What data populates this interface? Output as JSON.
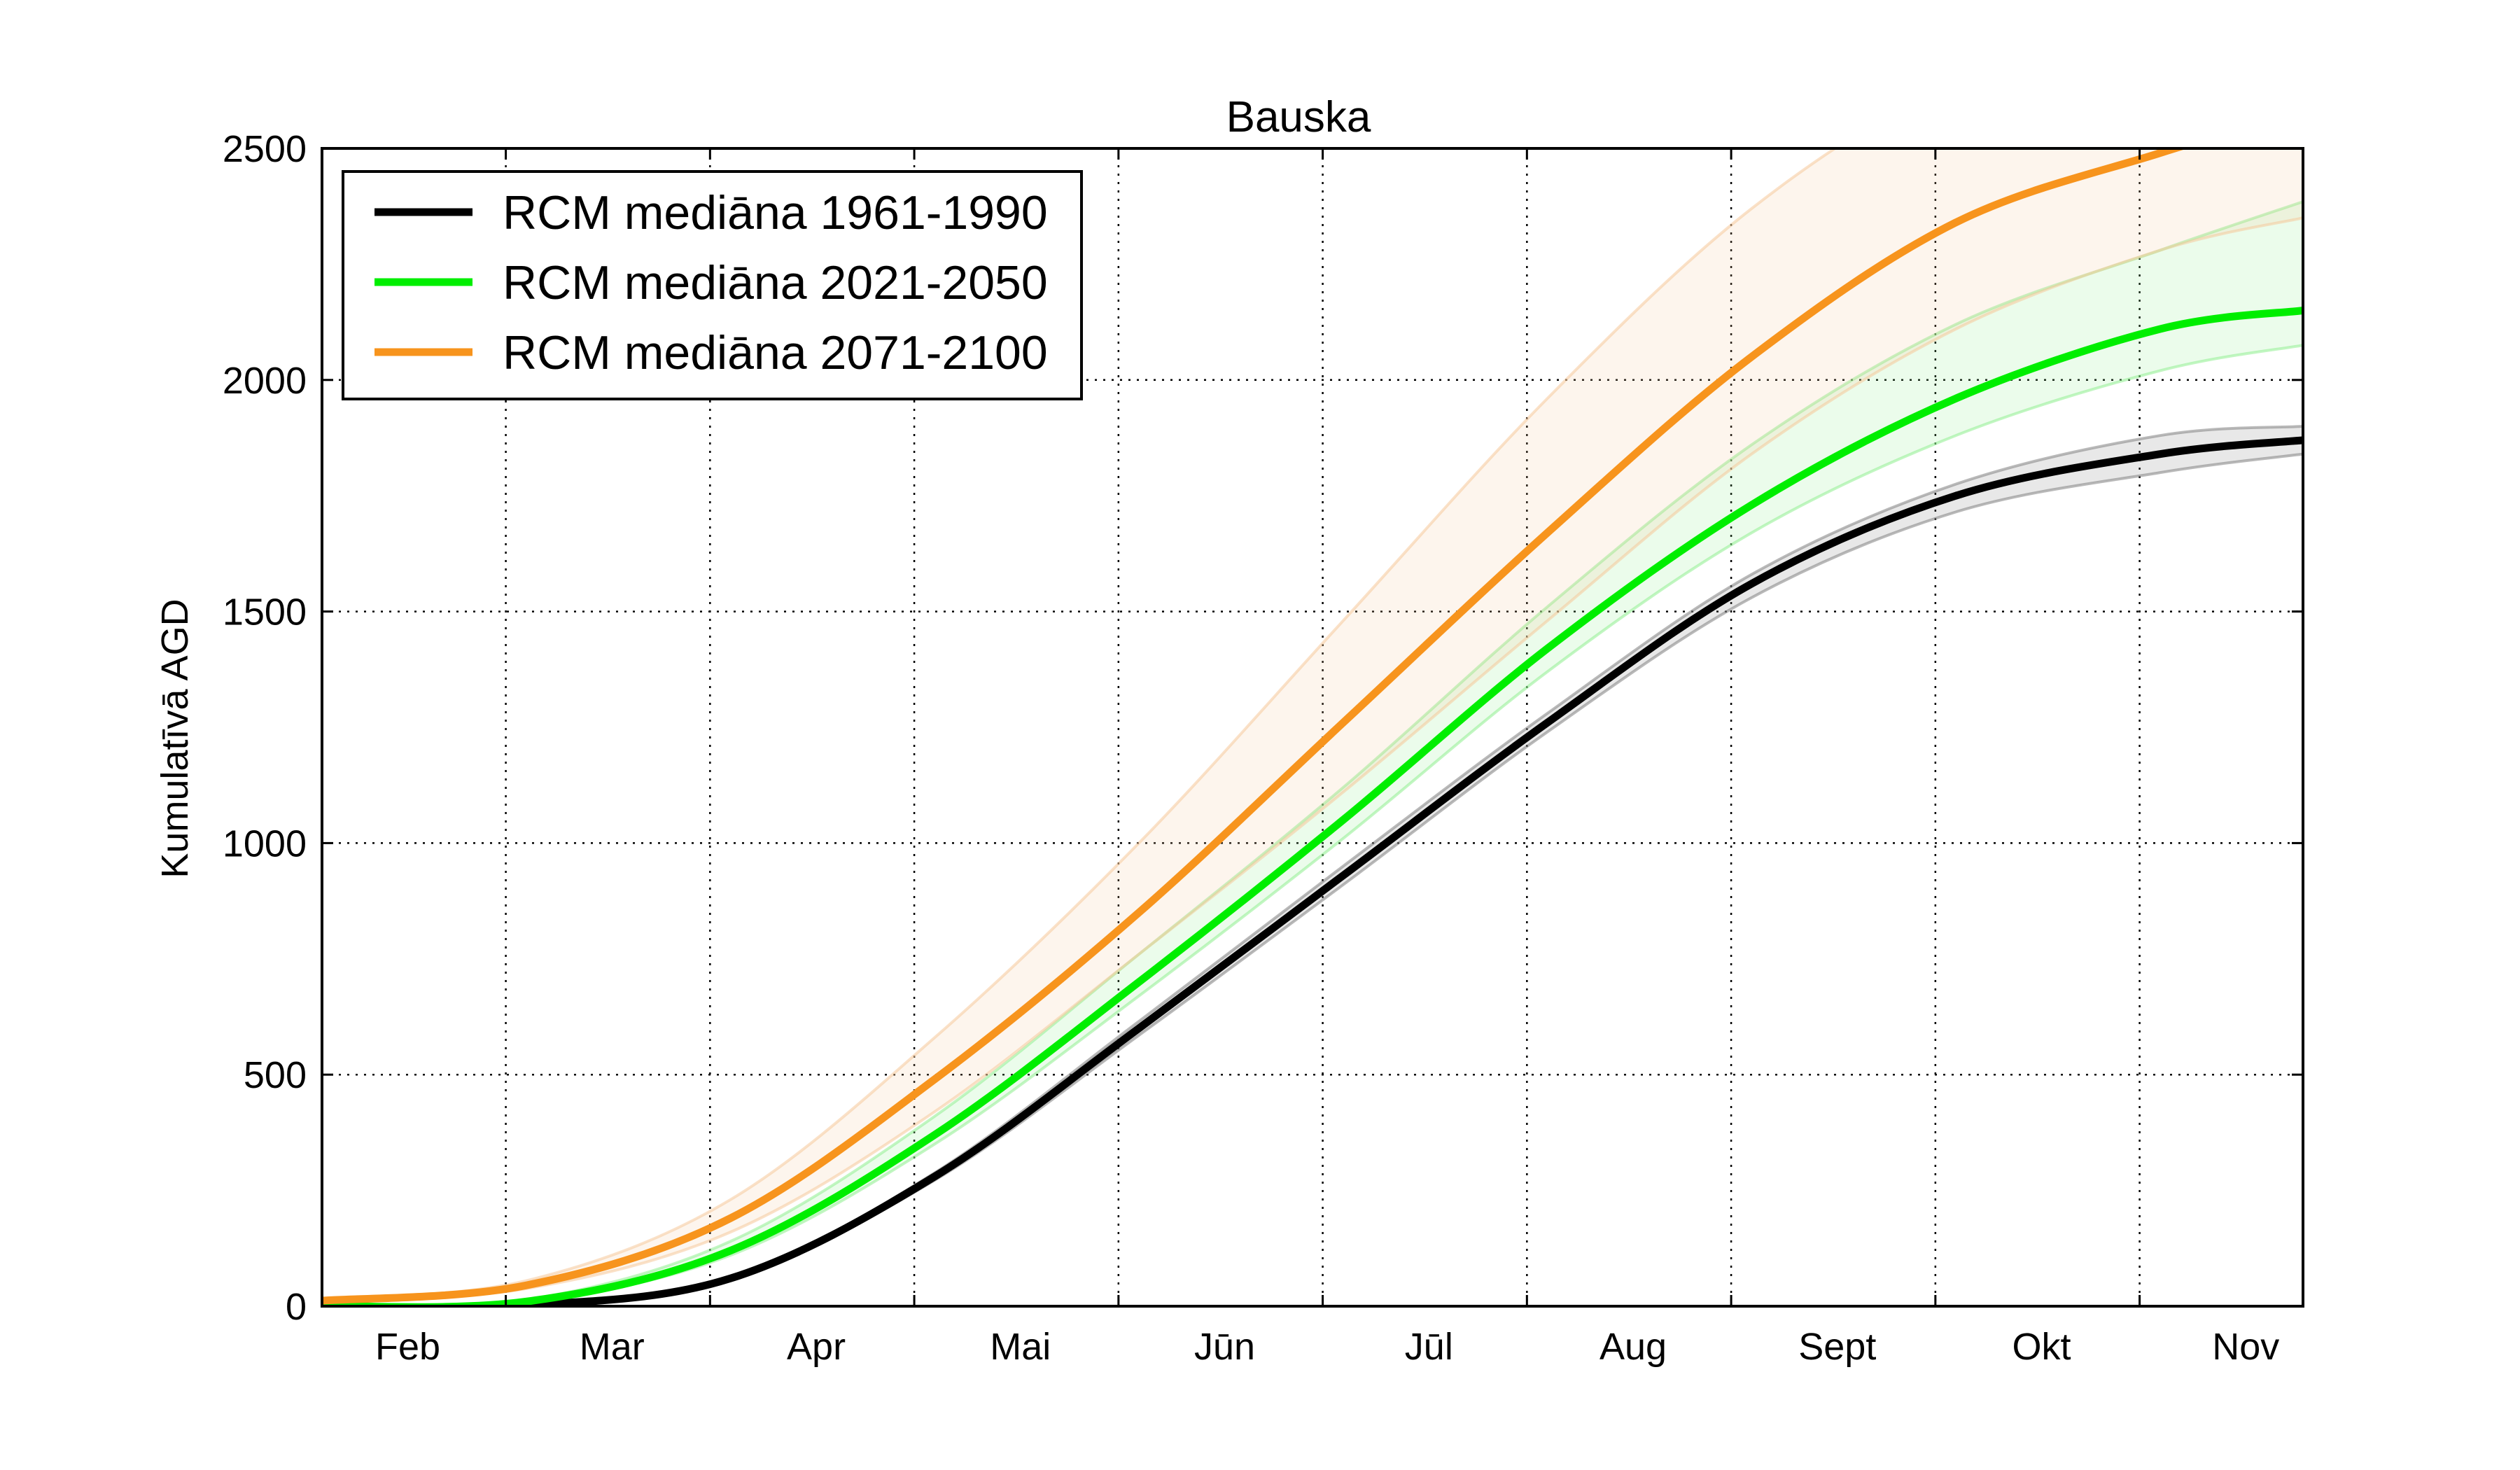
{
  "chart_data": {
    "type": "line",
    "title": "Bauska",
    "xlabel": "",
    "ylabel": "Kumulatīvā AGD",
    "ylim": [
      0,
      2500
    ],
    "yticks": [
      0,
      500,
      1000,
      1500,
      2000,
      2500
    ],
    "x_tick_labels": [
      "Feb",
      "Mar",
      "Apr",
      "Mai",
      "Jūn",
      "Jūl",
      "Aug",
      "Sept",
      "Okt",
      "Nov"
    ],
    "grid": true,
    "legend_position": "top-left",
    "x_sample_months": [
      0.0,
      1.0,
      2.0,
      3.0,
      4.0,
      5.0,
      6.0,
      7.0,
      8.0,
      9.0,
      9.7
    ],
    "series": [
      {
        "name": "RCM mediāna 1961-1990",
        "color": "#000000",
        "band_color": "#808080",
        "values": [
          0,
          2,
          60,
          280,
          600,
          930,
          1260,
          1560,
          1750,
          1840,
          1870
        ],
        "lower": [
          0,
          2,
          58,
          272,
          585,
          910,
          1240,
          1530,
          1715,
          1800,
          1840
        ],
        "upper": [
          0,
          3,
          62,
          288,
          615,
          950,
          1280,
          1580,
          1775,
          1880,
          1900
        ]
      },
      {
        "name": "RCM mediāna 2021-2050",
        "color": "#00ee00",
        "band_color": "#90ee90",
        "values": [
          0,
          10,
          120,
          370,
          700,
          1050,
          1420,
          1730,
          1960,
          2110,
          2150
        ],
        "lower": [
          0,
          9,
          110,
          350,
          670,
          1010,
          1370,
          1670,
          1880,
          2020,
          2075
        ],
        "upper": [
          0,
          14,
          140,
          410,
          760,
          1120,
          1510,
          1860,
          2120,
          2280,
          2385
        ]
      },
      {
        "name": "RCM mediāna 2071-2100",
        "color": "#f7941d",
        "band_color": "#f5c89a",
        "values": [
          12,
          45,
          190,
          490,
          850,
          1260,
          1670,
          2050,
          2340,
          2490,
          2580
        ],
        "lower": [
          10,
          38,
          160,
          420,
          760,
          1110,
          1480,
          1840,
          2110,
          2280,
          2350
        ],
        "upper": [
          14,
          55,
          230,
          580,
          1000,
          1480,
          1960,
          2370,
          2650,
          2800,
          2850
        ]
      }
    ]
  }
}
